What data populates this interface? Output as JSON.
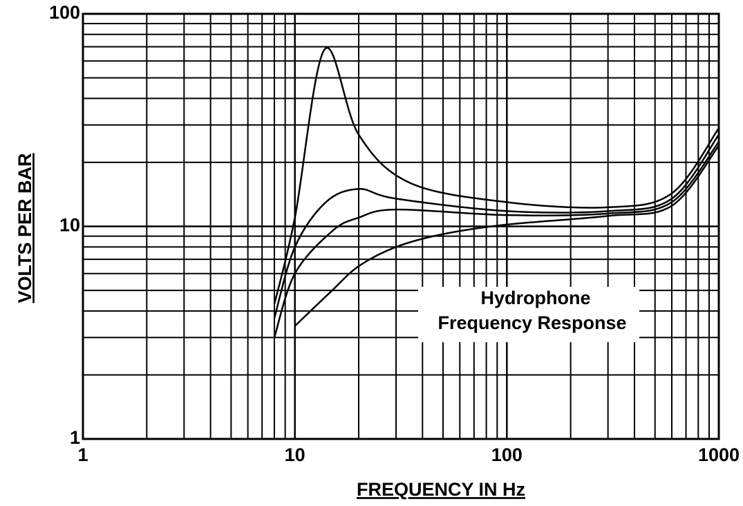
{
  "chart_data": {
    "type": "line",
    "x_label": "FREQUENCY  IN  Hz",
    "y_label": "VOLTS PER BAR",
    "annotation": [
      "Hydrophone",
      "Frequency  Response"
    ],
    "xscale": "log",
    "yscale": "log",
    "grid": true,
    "xlim": [
      1,
      1000
    ],
    "ylim": [
      1,
      100
    ],
    "xticks": [
      1,
      10,
      100,
      1000
    ],
    "yticks": [
      1,
      10,
      100
    ],
    "series": [
      {
        "color": "#000000",
        "x": [
          8,
          10,
          13.8,
          20,
          35,
          100,
          300,
          600,
          1000
        ],
        "values": [
          4.3,
          11,
          68,
          27,
          16,
          13,
          12.3,
          14.3,
          29
        ]
      },
      {
        "color": "#000000",
        "x": [
          8,
          10,
          14,
          20,
          30,
          100,
          300,
          600,
          1000
        ],
        "values": [
          3.7,
          8,
          13,
          15,
          13.5,
          11.8,
          11.8,
          13.5,
          27
        ]
      },
      {
        "color": "#000000",
        "x": [
          8,
          10,
          15,
          20,
          30,
          100,
          300,
          600,
          1000
        ],
        "values": [
          3.0,
          6,
          9.5,
          11,
          12,
          11.3,
          11.5,
          13,
          25
        ]
      },
      {
        "color": "#000000",
        "x": [
          10,
          15,
          20,
          30,
          50,
          100,
          300,
          600,
          1000
        ],
        "values": [
          3.4,
          5,
          6.5,
          8,
          9.2,
          10.2,
          11.2,
          12.5,
          24
        ]
      }
    ]
  }
}
